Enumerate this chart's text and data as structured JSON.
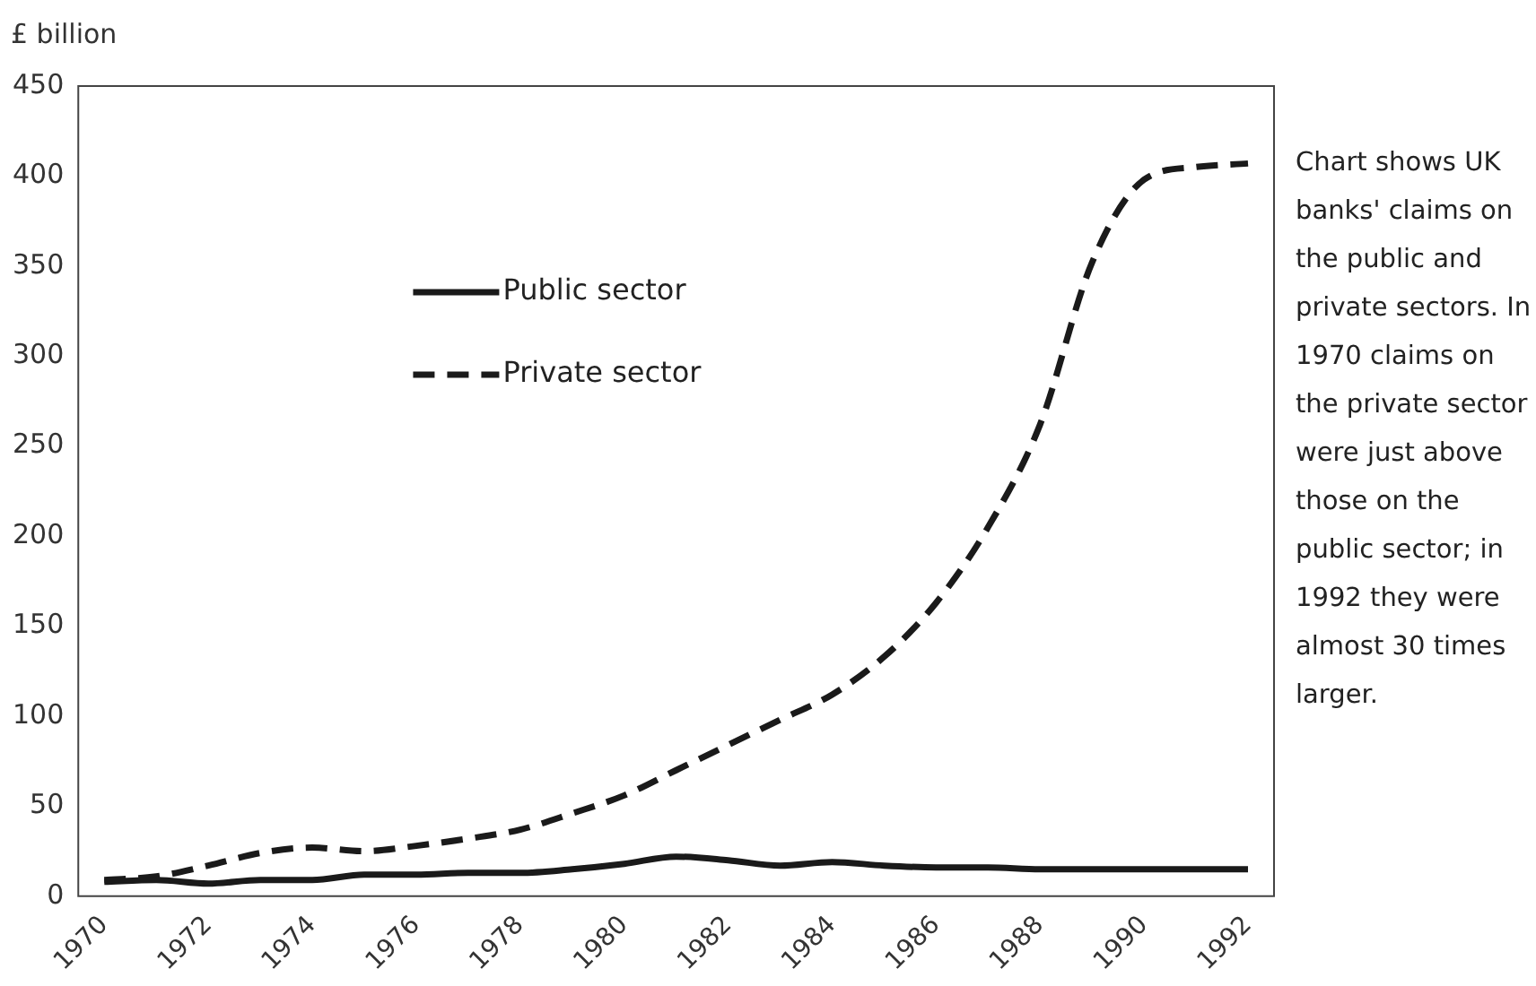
{
  "chart_data": {
    "type": "line",
    "ylabel": "£ billion",
    "categories": [
      "1970",
      null,
      "1972",
      null,
      "1974",
      null,
      "1976",
      null,
      "1978",
      null,
      "1980",
      null,
      "1982",
      null,
      "1984",
      null,
      "1986",
      null,
      "1988",
      null,
      "1990",
      null,
      "1992"
    ],
    "series": [
      {
        "name": "Public sector",
        "color": "#1a1a1a",
        "line_style": "solid",
        "values": [
          8,
          9,
          7,
          9,
          9,
          12,
          12,
          13,
          13,
          15,
          18,
          22,
          20,
          17,
          19,
          17,
          16,
          16,
          15,
          15,
          15,
          15,
          15
        ]
      },
      {
        "name": "Private sector",
        "color": "#1a1a1a",
        "line_style": "dashed",
        "values": [
          9,
          11,
          17,
          24,
          27,
          25,
          28,
          32,
          37,
          46,
          56,
          70,
          84,
          98,
          112,
          133,
          163,
          205,
          262,
          352,
          398,
          405,
          407
        ]
      }
    ],
    "ylim": [
      0,
      450
    ],
    "yticks": [
      0,
      50,
      100,
      150,
      200,
      250,
      300,
      350,
      400,
      450
    ],
    "grid": false,
    "legend": "top left",
    "marker": "none",
    "annotations": [
      "Chart shows UK banks' claims on the public and private sectors. In 1970 claims on the private sector were just above those on the public sector; in 1992 they were almost 30 times larger."
    ]
  }
}
